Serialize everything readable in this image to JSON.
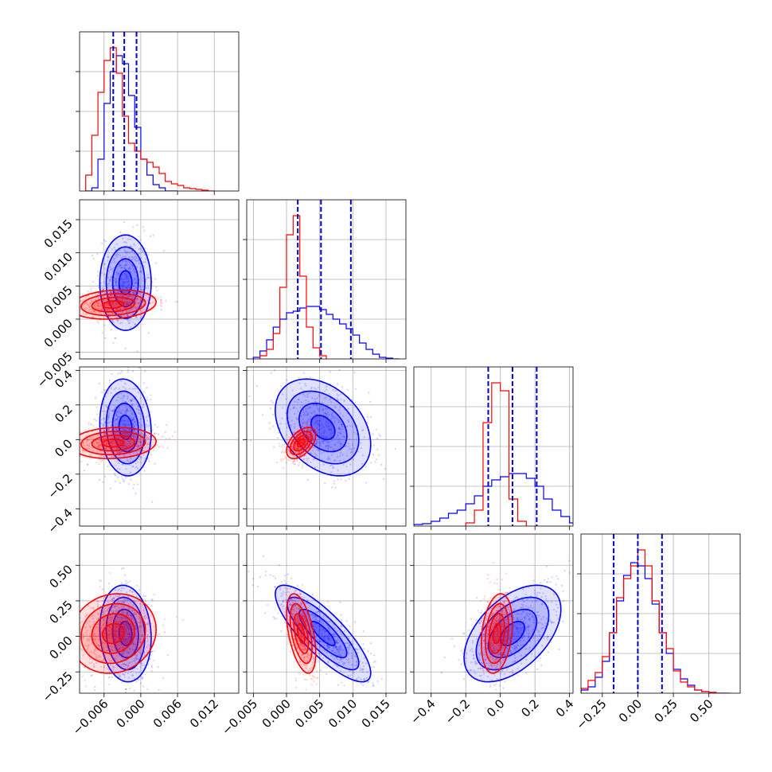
{
  "colors": {
    "blue": "#0000ff",
    "red": "#ff0000",
    "grid": "#b0b0b0",
    "quantile_line": "#0000cc"
  },
  "chart_data": {
    "type": "corner",
    "grid": true,
    "parameters": [
      {
        "range": [
          -0.01,
          0.016
        ],
        "ticks": [
          -0.006,
          0.0,
          0.006,
          0.012
        ],
        "tick_labels": [
          "−0.006",
          "0.000",
          "0.006",
          "0.012"
        ],
        "hist_yticks": 3,
        "quantiles_blue": [
          -0.0045,
          -0.0027,
          -0.0007
        ],
        "hist_blue": {
          "edges": [
            -0.009,
            -0.008,
            -0.007,
            -0.006,
            -0.005,
            -0.004,
            -0.003,
            -0.002,
            -0.001,
            0.0,
            0.001,
            0.002,
            0.003,
            0.004,
            0.005,
            0.006
          ],
          "counts": [
            0,
            0.02,
            0.2,
            0.55,
            0.75,
            0.85,
            0.8,
            0.6,
            0.4,
            0.2,
            0.1,
            0.04,
            0.02,
            0,
            0
          ]
        },
        "hist_red": {
          "edges": [
            -0.009,
            -0.008,
            -0.007,
            -0.006,
            -0.005,
            -0.004,
            -0.003,
            -0.002,
            -0.001,
            0.0,
            0.001,
            0.002,
            0.003,
            0.004,
            0.005,
            0.006,
            0.007,
            0.008,
            0.009,
            0.01,
            0.011,
            0.012
          ],
          "counts": [
            0.1,
            0.35,
            0.62,
            0.82,
            0.9,
            0.74,
            0.47,
            0.3,
            0.25,
            0.2,
            0.18,
            0.15,
            0.11,
            0.06,
            0.045,
            0.035,
            0.02,
            0.015,
            0.01,
            0.005,
            0
          ]
        }
      },
      {
        "range": [
          -0.006,
          0.018
        ],
        "ticks": [
          -0.005,
          0.0,
          0.005,
          0.01,
          0.015
        ],
        "tick_labels": [
          "−0.005",
          "0.000",
          "0.005",
          "0.010",
          "0.015"
        ],
        "hist_yticks": 3,
        "quantiles_blue": [
          0.0017,
          0.0052,
          0.0097
        ],
        "hist_blue": {
          "edges": [
            -0.005,
            -0.004,
            -0.003,
            -0.002,
            -0.001,
            0.0,
            0.001,
            0.002,
            0.003,
            0.004,
            0.005,
            0.006,
            0.007,
            0.008,
            0.009,
            0.01,
            0.011,
            0.012,
            0.013,
            0.014,
            0.015,
            0.016,
            0.017
          ],
          "counts": [
            0.01,
            0.05,
            0.12,
            0.2,
            0.25,
            0.29,
            0.3,
            0.32,
            0.33,
            0.33,
            0.31,
            0.28,
            0.25,
            0.22,
            0.19,
            0.15,
            0.1,
            0.06,
            0.03,
            0.01,
            0.005,
            0
          ]
        },
        "hist_red": {
          "edges": [
            -0.004,
            -0.003,
            -0.002,
            -0.001,
            0.0,
            0.001,
            0.002,
            0.003,
            0.004,
            0.005,
            0.006
          ],
          "counts": [
            0.02,
            0.06,
            0.16,
            0.45,
            0.78,
            0.9,
            0.52,
            0.2,
            0.07,
            0.02
          ]
        }
      },
      {
        "range": [
          -0.5,
          0.42
        ],
        "ticks": [
          -0.4,
          -0.2,
          0.0,
          0.2,
          0.4
        ],
        "tick_labels": [
          "−0.4",
          "−0.2",
          "0.0",
          "0.2",
          "0.4"
        ],
        "hist_yticks": 3,
        "quantiles_blue": [
          -0.07,
          0.07,
          0.21
        ],
        "hist_blue": {
          "edges": [
            -0.5,
            -0.45,
            -0.4,
            -0.35,
            -0.3,
            -0.25,
            -0.2,
            -0.15,
            -0.1,
            -0.05,
            0.0,
            0.05,
            0.1,
            0.15,
            0.2,
            0.25,
            0.3,
            0.35,
            0.4,
            0.45
          ],
          "counts": [
            0.01,
            0.015,
            0.03,
            0.05,
            0.08,
            0.1,
            0.14,
            0.19,
            0.25,
            0.29,
            0.31,
            0.33,
            0.33,
            0.3,
            0.25,
            0.17,
            0.1,
            0.06,
            0.02
          ]
        },
        "hist_red": {
          "edges": [
            -0.2,
            -0.15,
            -0.1,
            -0.05,
            0.0,
            0.05,
            0.1,
            0.15
          ],
          "counts": [
            0.02,
            0.1,
            0.65,
            0.9,
            0.85,
            0.17,
            0.03
          ]
        }
      },
      {
        "range": [
          -0.4,
          0.72
        ],
        "ticks": [
          -0.25,
          0.0,
          0.25,
          0.5
        ],
        "tick_labels": [
          "−0.25",
          "0.00",
          "0.25",
          "0.50"
        ],
        "hist_yticks": 3,
        "quantiles_blue": [
          -0.17,
          0.0,
          0.17
        ],
        "hist_blue": {
          "edges": [
            -0.4,
            -0.35,
            -0.3,
            -0.25,
            -0.2,
            -0.15,
            -0.1,
            -0.05,
            0.0,
            0.05,
            0.1,
            0.15,
            0.2,
            0.25,
            0.3,
            0.35,
            0.4,
            0.45,
            0.5,
            0.55,
            0.6,
            0.65
          ],
          "counts": [
            0.02,
            0.04,
            0.1,
            0.2,
            0.38,
            0.58,
            0.74,
            0.82,
            0.8,
            0.72,
            0.56,
            0.38,
            0.25,
            0.15,
            0.09,
            0.05,
            0.02,
            0.01,
            0.005,
            0,
            0
          ]
        },
        "hist_red": {
          "edges": [
            -0.4,
            -0.35,
            -0.3,
            -0.25,
            -0.2,
            -0.15,
            -0.1,
            -0.05,
            0.0,
            0.05,
            0.1,
            0.15,
            0.2,
            0.25,
            0.3,
            0.35,
            0.4,
            0.45,
            0.5,
            0.55,
            0.6
          ],
          "counts": [
            0.03,
            0.08,
            0.13,
            0.23,
            0.38,
            0.6,
            0.72,
            0.8,
            0.9,
            0.8,
            0.58,
            0.38,
            0.28,
            0.14,
            0.07,
            0.04,
            0.02,
            0.01,
            0.005,
            0
          ]
        }
      }
    ],
    "pairs": [
      {
        "row": 1,
        "col": 0,
        "blue": {
          "mean": [
            -0.0025,
            0.0055
          ],
          "sd": [
            0.0021,
            0.0036
          ],
          "corr": 0.0
        },
        "red": {
          "mean": [
            -0.0045,
            0.0022
          ],
          "sd": [
            0.0035,
            0.0011
          ],
          "corr": 0.18
        }
      },
      {
        "row": 2,
        "col": 0,
        "blue": {
          "mean": [
            -0.0025,
            0.07
          ],
          "sd": [
            0.0021,
            0.14
          ],
          "corr": -0.1
        },
        "red": {
          "mean": [
            -0.0045,
            -0.02
          ],
          "sd": [
            0.0035,
            0.045
          ],
          "corr": 0.1
        }
      },
      {
        "row": 2,
        "col": 1,
        "blue": {
          "mean": [
            0.0055,
            0.07
          ],
          "sd": [
            0.0036,
            0.14
          ],
          "corr": -0.35
        },
        "red": {
          "mean": [
            0.0022,
            -0.02
          ],
          "sd": [
            0.0011,
            0.045
          ],
          "corr": 0.5
        }
      },
      {
        "row": 3,
        "col": 0,
        "blue": {
          "mean": [
            -0.0025,
            0.02
          ],
          "sd": [
            0.0021,
            0.17
          ],
          "corr": -0.1
        },
        "red": {
          "mean": [
            -0.0045,
            0.02
          ],
          "sd": [
            0.0035,
            0.14
          ],
          "corr": 0.1
        }
      },
      {
        "row": 3,
        "col": 1,
        "blue": {
          "mean": [
            0.0055,
            0.02
          ],
          "sd": [
            0.0036,
            0.17
          ],
          "corr": -0.82
        },
        "red": {
          "mean": [
            0.0022,
            0.02
          ],
          "sd": [
            0.0011,
            0.14
          ],
          "corr": -0.5
        }
      },
      {
        "row": 3,
        "col": 2,
        "blue": {
          "mean": [
            0.07,
            0.02
          ],
          "sd": [
            0.14,
            0.17
          ],
          "corr": 0.5
        },
        "red": {
          "mean": [
            -0.02,
            0.02
          ],
          "sd": [
            0.045,
            0.14
          ],
          "corr": 0.25
        }
      }
    ]
  }
}
